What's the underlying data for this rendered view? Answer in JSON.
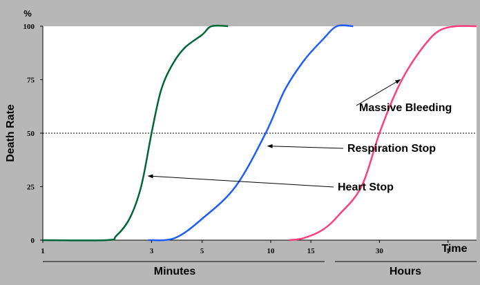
{
  "chart_data": {
    "type": "line",
    "ylabel": "Death Rate",
    "y_unit_label": "%",
    "ylim": [
      0,
      100
    ],
    "y_ticks": [
      0,
      25,
      50,
      75,
      100
    ],
    "x_axis_label": "Time",
    "x_scale": "log (minutes)",
    "x_ticks": [
      {
        "label": "1",
        "minutes": 1
      },
      {
        "label": "3",
        "minutes": 3
      },
      {
        "label": "5",
        "minutes": 5
      },
      {
        "label": "10",
        "minutes": 10
      },
      {
        "label": "15",
        "minutes": 15
      },
      {
        "label": "30",
        "minutes": 30
      },
      {
        "label": "1",
        "minutes": 60
      }
    ],
    "x_groups": [
      {
        "label": "Minutes",
        "from_minutes": 1,
        "to_minutes": 55
      },
      {
        "label": "Hours",
        "from_minutes": 60,
        "to_minutes": 200
      }
    ],
    "reference_line": {
      "y": 50,
      "style": "dotted"
    },
    "series": [
      {
        "name": "Heart Stop",
        "color": "#006633",
        "points": [
          [
            1,
            0
          ],
          [
            1.9,
            0
          ],
          [
            2.1,
            2
          ],
          [
            2.4,
            10
          ],
          [
            2.7,
            25
          ],
          [
            3,
            50
          ],
          [
            3.3,
            70
          ],
          [
            3.7,
            82
          ],
          [
            4.2,
            90
          ],
          [
            5,
            96
          ],
          [
            5.5,
            100
          ],
          [
            6.5,
            100
          ]
        ]
      },
      {
        "name": "Respiration Stop",
        "color": "#1e5cff",
        "points": [
          [
            2.9,
            0
          ],
          [
            3.8,
            1
          ],
          [
            5,
            10
          ],
          [
            7,
            25
          ],
          [
            9.5,
            50
          ],
          [
            11.5,
            70
          ],
          [
            14,
            84
          ],
          [
            17,
            94
          ],
          [
            19.5,
            100
          ],
          [
            23,
            100
          ]
        ]
      },
      {
        "name": "Massive Bleeding",
        "color": "#ff3d7f",
        "points": [
          [
            12,
            0
          ],
          [
            14,
            1
          ],
          [
            17,
            5
          ],
          [
            20,
            12
          ],
          [
            25,
            25
          ],
          [
            30,
            50
          ],
          [
            35,
            68
          ],
          [
            40,
            80
          ],
          [
            48,
            92
          ],
          [
            55,
            98
          ],
          [
            65,
            100
          ],
          [
            80,
            100
          ]
        ]
      }
    ],
    "annotations": [
      {
        "text": "Massive Bleeding",
        "points_to": "Massive Bleeding",
        "at": [
          37,
          75
        ]
      },
      {
        "text": "Respiration Stop",
        "points_to": "Respiration Stop",
        "at": [
          9.7,
          44
        ]
      },
      {
        "text": "Heart Stop",
        "points_to": "Heart Stop",
        "at": [
          2.9,
          30
        ]
      }
    ]
  }
}
